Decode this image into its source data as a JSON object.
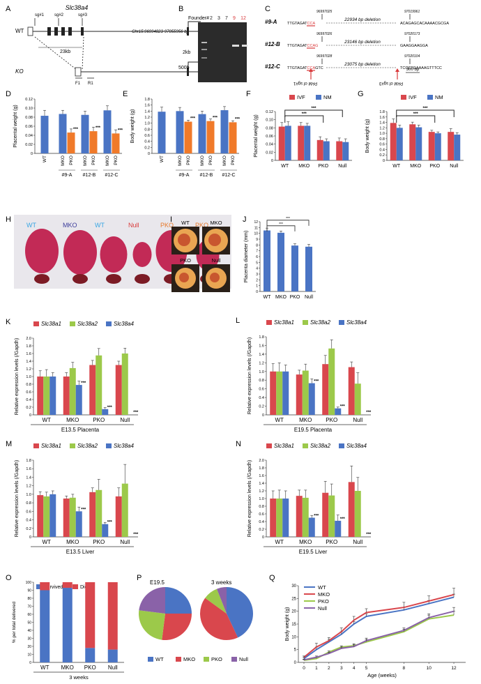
{
  "colors": {
    "blue": "#4a74c4",
    "orange": "#f07a2a",
    "red": "#d9474d",
    "green": "#9cc94a",
    "purple": "#8a62a8",
    "wt_label": "#38a6e3",
    "mko_label": "#3b3b9a",
    "null_label": "#d93a3a",
    "pko_label": "#e8792a",
    "gel_red": "#d9383a",
    "brace_line": "#222222"
  },
  "panels": {
    "A": {
      "letter": "A",
      "gene": "Slc38a4",
      "coords": "Chr15:96994823-97055956 bp",
      "row_wt": "WT",
      "row_ko": "KO",
      "sg1": "sg#1",
      "sg2": "sg#2",
      "sg3": "sg#3",
      "span": "23kb",
      "f1": "F1",
      "r1": "R1"
    },
    "B": {
      "letter": "B",
      "founder_label": "Founder#",
      "lanes": [
        "2",
        "3",
        "7",
        "9",
        "12"
      ],
      "highlight_lanes": [
        "9",
        "12"
      ],
      "marker_top": "2kb",
      "marker_bottom": "500b"
    },
    "C": {
      "letter": "C",
      "alleles": [
        {
          "name": "#9-A",
          "left_pos": "96997025",
          "right_pos": "97019961",
          "deletion": "22934 bp deletion",
          "left_seq_plain": "TTGTAGAT",
          "left_seq_pam": "CCA",
          "right_seq": "ACAGAGCACAAAACGCGA"
        },
        {
          "name": "#12-B",
          "left_pos": "96997026",
          "right_pos": "97020173",
          "deletion": "23146 bp deletion",
          "left_seq_plain": "TTGTAGAT",
          "left_seq_pam": "CCAG",
          "right_seq": "GAAGGAAGGA"
        },
        {
          "name": "#12-C",
          "left_pos": "96997028",
          "right_pos": "97020104",
          "deletion": "23075 bp deletion",
          "left_seq_plain": "TTGTAGAT",
          "left_seq_pam": "CCA",
          "left_seq_tail": "GTC",
          "right_seq": "TCCCTGAAAAGTTTCC"
        }
      ],
      "pam1": "PAM of sg#1",
      "pam3": "PAM of sg#3",
      "scale": "300 bp"
    },
    "D": {
      "letter": "D"
    },
    "E": {
      "letter": "E"
    },
    "F": {
      "letter": "F"
    },
    "G": {
      "letter": "G"
    },
    "H": {
      "letter": "H",
      "labels": [
        "WT",
        "MKO",
        "WT",
        "Null",
        "PKO",
        "PKO"
      ]
    },
    "I": {
      "letter": "I",
      "labels": [
        "WT",
        "MKO",
        "PKO",
        "Null"
      ]
    },
    "J": {
      "letter": "J"
    },
    "K": {
      "letter": "K"
    },
    "L": {
      "letter": "L"
    },
    "M": {
      "letter": "M"
    },
    "N": {
      "letter": "N"
    },
    "O": {
      "letter": "O"
    },
    "P": {
      "letter": "P",
      "titles": [
        "E19.5",
        "3 weeks"
      ],
      "legend": [
        "WT",
        "MKO",
        "PKO",
        "Null"
      ]
    },
    "Q": {
      "letter": "Q"
    }
  },
  "chart_data": [
    {
      "id": "D",
      "type": "bar",
      "ylabel": "Placental weight (g)",
      "ylim": [
        0,
        0.12
      ],
      "yticks": [
        "0",
        "0.02",
        "0.04",
        "0.06",
        "0.08",
        "0.10",
        "0.12"
      ],
      "categories": [
        "WT",
        "MKO",
        "PKO",
        "MKO",
        "PKO",
        "MKO",
        "PKO"
      ],
      "group_labels": [
        "#9-A",
        "#12-B",
        "#12-C"
      ],
      "values": [
        0.083,
        0.087,
        0.046,
        0.085,
        0.049,
        0.095,
        0.044
      ],
      "errors": [
        0.012,
        0.008,
        0.008,
        0.008,
        0.009,
        0.01,
        0.008
      ],
      "colors": [
        "blue",
        "blue",
        "orange",
        "blue",
        "orange",
        "blue",
        "orange"
      ],
      "sig": [
        "",
        "",
        "***",
        "",
        "***",
        "",
        "***"
      ]
    },
    {
      "id": "E",
      "type": "bar",
      "ylabel": "Body weight (g)",
      "ylim": [
        0,
        1.8
      ],
      "yticks": [
        "0",
        "0.2",
        "0.4",
        "0.6",
        "0.8",
        "1.0",
        "1.2",
        "1.4",
        "1.6",
        "1.8"
      ],
      "categories": [
        "WT",
        "MKO",
        "PKO",
        "MKO",
        "PKO",
        "MKO",
        "PKO"
      ],
      "group_labels": [
        "#9-A",
        "#12-B",
        "#12-C"
      ],
      "values": [
        1.38,
        1.4,
        1.05,
        1.3,
        1.07,
        1.43,
        1.03
      ],
      "errors": [
        0.15,
        0.12,
        0.05,
        0.1,
        0.07,
        0.12,
        0.05
      ],
      "colors": [
        "blue",
        "blue",
        "orange",
        "blue",
        "orange",
        "blue",
        "orange"
      ],
      "sig": [
        "",
        "",
        "***",
        "",
        "***",
        "",
        "***"
      ]
    },
    {
      "id": "F",
      "type": "bar",
      "ylabel": "Placental weight (g)",
      "ylim": [
        0,
        0.12
      ],
      "yticks": [
        "0",
        "0.02",
        "0.04",
        "0.06",
        "0.08",
        "0.10",
        "0.12"
      ],
      "categories": [
        "WT",
        "MKO",
        "PKO",
        "Null"
      ],
      "series": [
        {
          "name": "IVF",
          "values": [
            0.083,
            0.085,
            0.05,
            0.047
          ],
          "errors": [
            0.01,
            0.008,
            0.008,
            0.008
          ]
        },
        {
          "name": "NM",
          "values": [
            0.085,
            0.085,
            0.047,
            0.045
          ],
          "errors": [
            0.01,
            0.006,
            0.006,
            0.008
          ]
        }
      ],
      "brackets": [
        {
          "from": 0,
          "to": 2,
          "label": "***",
          "level": 0
        },
        {
          "from": 0,
          "to": 3,
          "label": "***",
          "level": 1
        }
      ]
    },
    {
      "id": "G",
      "type": "bar",
      "ylabel": "Body weight (g)",
      "ylim": [
        0,
        1.8
      ],
      "yticks": [
        "0",
        "0.2",
        "0.4",
        "0.6",
        "0.8",
        "1.0",
        "1.2",
        "1.4",
        "1.6",
        "1.8"
      ],
      "categories": [
        "WT",
        "MKO",
        "PKO",
        "Null"
      ],
      "series": [
        {
          "name": "IVF",
          "values": [
            1.38,
            1.33,
            1.05,
            1.05
          ],
          "errors": [
            0.15,
            0.08,
            0.06,
            0.12
          ]
        },
        {
          "name": "NM",
          "values": [
            1.2,
            1.22,
            1.0,
            0.95
          ],
          "errors": [
            0.1,
            0.08,
            0.05,
            0.07
          ]
        }
      ],
      "brackets": [
        {
          "from": 0,
          "to": 2,
          "label": "***",
          "level": 0
        },
        {
          "from": 0,
          "to": 3,
          "label": "***",
          "level": 1
        }
      ]
    },
    {
      "id": "J",
      "type": "bar",
      "ylabel": "Placenta diameter (mm)",
      "ylim": [
        0,
        12
      ],
      "yticks": [
        "0",
        "1",
        "2",
        "3",
        "4",
        "5",
        "6",
        "7",
        "8",
        "9",
        "10",
        "11",
        "12"
      ],
      "categories": [
        "WT",
        "MKO",
        "PKO",
        "Null"
      ],
      "values": [
        10.5,
        10.1,
        7.9,
        7.7
      ],
      "errors": [
        0.4,
        0.3,
        0.3,
        0.4
      ],
      "brackets": [
        {
          "from": 0,
          "to": 2,
          "label": "***",
          "level": 0
        },
        {
          "from": 0,
          "to": 3,
          "label": "***",
          "level": 1
        }
      ]
    },
    {
      "id": "K",
      "type": "bar",
      "ylabel": "Relative expression levels (/Gapdh)",
      "ylim": [
        0,
        2.0
      ],
      "yticks": [
        "0",
        "0.2",
        "0.4",
        "0.6",
        "0.8",
        "1.0",
        "1.2",
        "1.4",
        "1.6",
        "1.8",
        "2.0"
      ],
      "categories": [
        "WT",
        "MKO",
        "PKO",
        "Null"
      ],
      "xlabel": "E13.5 Placenta",
      "series": [
        {
          "name": "Slc38a1",
          "values": [
            1.0,
            1.0,
            1.3,
            1.3
          ],
          "errors": [
            0.15,
            0.1,
            0.12,
            0.1
          ]
        },
        {
          "name": "Slc38a2",
          "values": [
            1.0,
            1.22,
            1.55,
            1.6
          ],
          "errors": [
            0.18,
            0.15,
            0.18,
            0.14
          ]
        },
        {
          "name": "Slc38a4",
          "values": [
            1.0,
            0.78,
            0.15,
            0.0
          ],
          "errors": [
            0.1,
            0.1,
            0.04,
            0.0
          ]
        }
      ],
      "sig": [
        [
          "",
          "",
          ""
        ],
        [
          "",
          "",
          "***"
        ],
        [
          "",
          "",
          "***"
        ],
        [
          "",
          "",
          "***"
        ]
      ]
    },
    {
      "id": "L",
      "type": "bar",
      "ylabel": "Relative expression levels (/Gapdh)",
      "ylim": [
        0,
        1.8
      ],
      "yticks": [
        "0",
        "0.2",
        "0.4",
        "0.6",
        "0.8",
        "1.0",
        "1.2",
        "1.4",
        "1.6",
        "1.8"
      ],
      "categories": [
        "WT",
        "MKO",
        "PKO",
        "Null"
      ],
      "xlabel": "E19.5 Placenta",
      "series": [
        {
          "name": "Slc38a1",
          "values": [
            1.0,
            0.93,
            1.17,
            1.1
          ],
          "errors": [
            0.18,
            0.1,
            0.2,
            0.12
          ]
        },
        {
          "name": "Slc38a2",
          "values": [
            1.0,
            1.02,
            1.53,
            0.72
          ],
          "errors": [
            0.2,
            0.15,
            0.2,
            0.25
          ]
        },
        {
          "name": "Slc38a4",
          "values": [
            1.0,
            0.73,
            0.15,
            0.0
          ],
          "errors": [
            0.15,
            0.1,
            0.03,
            0.0
          ]
        }
      ],
      "sig": [
        [
          "",
          "",
          ""
        ],
        [
          "",
          "",
          "***"
        ],
        [
          "",
          "",
          "***"
        ],
        [
          "",
          "",
          "***"
        ]
      ]
    },
    {
      "id": "M",
      "type": "bar",
      "ylabel": "Relative expression levels (/Gapdh)",
      "ylim": [
        0,
        1.8
      ],
      "yticks": [
        "0",
        "0.2",
        "0.4",
        "0.6",
        "0.8",
        "1.0",
        "1.2",
        "1.4",
        "1.6",
        "1.8"
      ],
      "categories": [
        "WT",
        "MKO",
        "PKO",
        "Null"
      ],
      "xlabel": "E13.5 Liver",
      "series": [
        {
          "name": "Slc38a1",
          "values": [
            0.98,
            0.9,
            1.05,
            0.95
          ],
          "errors": [
            0.08,
            0.06,
            0.1,
            0.2
          ]
        },
        {
          "name": "Slc38a2",
          "values": [
            0.95,
            0.92,
            1.1,
            1.25
          ],
          "errors": [
            0.1,
            0.08,
            0.25,
            0.45
          ]
        },
        {
          "name": "Slc38a4",
          "values": [
            1.0,
            0.6,
            0.3,
            0.0
          ],
          "errors": [
            0.08,
            0.1,
            0.04,
            0.0
          ]
        }
      ],
      "sig": [
        [
          "",
          "",
          ""
        ],
        [
          "",
          "",
          "***"
        ],
        [
          "",
          "",
          "***"
        ],
        [
          "",
          "",
          "***"
        ]
      ]
    },
    {
      "id": "N",
      "type": "bar",
      "ylabel": "Relative expression levels (/Gapdh)",
      "ylim": [
        0,
        2.0
      ],
      "yticks": [
        "0",
        "0.2",
        "0.4",
        "0.6",
        "0.8",
        "1.0",
        "1.2",
        "1.4",
        "1.6",
        "1.8",
        "2.0"
      ],
      "categories": [
        "WT",
        "MKO",
        "PKO",
        "Null"
      ],
      "xlabel": "E19.5 Liver",
      "series": [
        {
          "name": "Slc38a1",
          "values": [
            1.0,
            1.07,
            1.15,
            1.43
          ],
          "errors": [
            0.2,
            0.15,
            0.3,
            0.42
          ]
        },
        {
          "name": "Slc38a2",
          "values": [
            1.0,
            1.02,
            1.08,
            1.2
          ],
          "errors": [
            0.22,
            0.2,
            0.3,
            0.35
          ]
        },
        {
          "name": "Slc38a4",
          "values": [
            1.0,
            0.5,
            0.42,
            0.0
          ],
          "errors": [
            0.2,
            0.06,
            0.15,
            0.0
          ]
        }
      ],
      "sig": [
        [
          "",
          "",
          ""
        ],
        [
          "",
          "",
          "***"
        ],
        [
          "",
          "",
          "***"
        ],
        [
          "",
          "",
          "***"
        ]
      ]
    },
    {
      "id": "O",
      "type": "bar",
      "ylabel": "% per total delivered",
      "ylim": [
        0,
        100
      ],
      "yticks": [
        "0",
        "10",
        "20",
        "30",
        "40",
        "50",
        "60",
        "70",
        "80",
        "90",
        "100"
      ],
      "categories": [
        "WT",
        "MKO",
        "PKO",
        "Null"
      ],
      "xlabel": "3 weeks",
      "series": [
        {
          "name": "Survived",
          "values": [
            90,
            93,
            18,
            16
          ]
        },
        {
          "name": "Died",
          "values": [
            10,
            7,
            82,
            84
          ]
        }
      ]
    },
    {
      "id": "P1",
      "type": "pie",
      "title": "E19.5",
      "labels": [
        "WT",
        "MKO",
        "PKO",
        "Null"
      ],
      "values": [
        25,
        27,
        25,
        23
      ]
    },
    {
      "id": "P2",
      "type": "pie",
      "title": "3 weeks",
      "labels": [
        "WT",
        "MKO",
        "PKO",
        "Null"
      ],
      "values": [
        43,
        42,
        9,
        6
      ]
    },
    {
      "id": "Q",
      "type": "line",
      "ylabel": "Body weight (g)",
      "xlabel": "Age (weeks)",
      "ylim": [
        0,
        30
      ],
      "yticks": [
        "0",
        "5",
        "10",
        "15",
        "20",
        "25",
        "30"
      ],
      "x": [
        0,
        1,
        2,
        3,
        4,
        5,
        8,
        10,
        12
      ],
      "xticklabels": [
        "0",
        "1",
        "2",
        "3",
        "4",
        "5",
        "8",
        "10",
        "12"
      ],
      "series": [
        {
          "name": "WT",
          "values": [
            1.5,
            5,
            8,
            11,
            15,
            18,
            20.5,
            23,
            25.5
          ],
          "errors": [
            0.5,
            1,
            1,
            1,
            1,
            1,
            1,
            1.2,
            1.2
          ],
          "color": "blue"
        },
        {
          "name": "MKO",
          "values": [
            2,
            6,
            8.5,
            12,
            16.5,
            19.5,
            21.5,
            24,
            26.5
          ],
          "errors": [
            0.5,
            1.5,
            1.2,
            1.5,
            1.5,
            1.5,
            2,
            2,
            2.5
          ],
          "color": "red"
        },
        {
          "name": "PKO",
          "values": [
            0.8,
            1.5,
            4,
            6,
            6.5,
            8,
            12,
            17,
            18.5
          ],
          "errors": [
            0.3,
            0.5,
            0.5,
            0.5,
            0.8,
            1,
            1,
            1.5,
            1.5
          ],
          "color": "green"
        },
        {
          "name": "Null",
          "values": [
            1,
            2,
            3.5,
            5.5,
            6.2,
            8.5,
            12.5,
            17.5,
            20
          ],
          "errors": [
            0.3,
            0.5,
            0.5,
            0.5,
            0.8,
            1,
            1,
            1.5,
            1.5
          ],
          "color": "purple"
        }
      ]
    }
  ]
}
